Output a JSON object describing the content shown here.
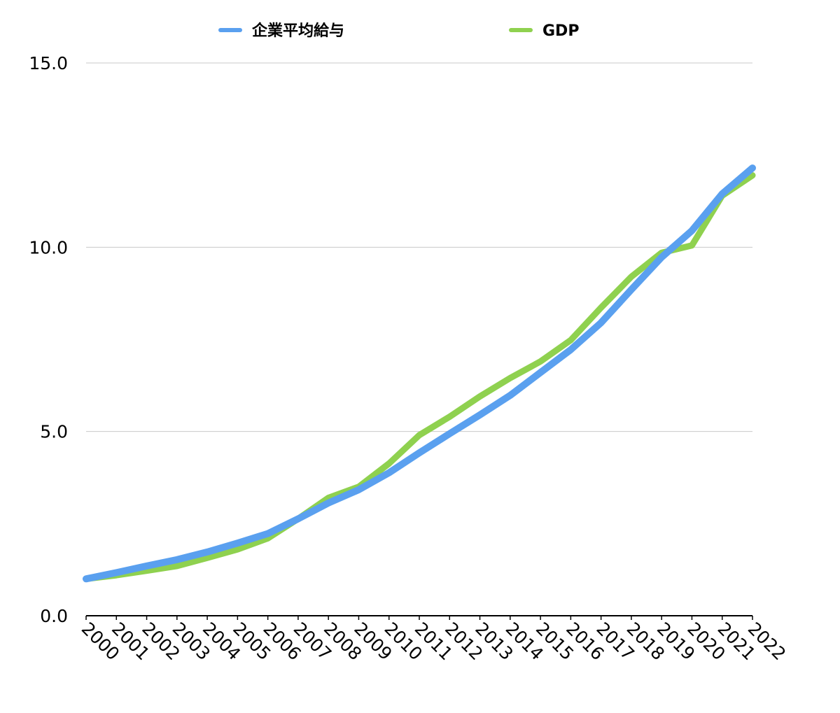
{
  "chart_data": {
    "type": "line",
    "title": "",
    "xlabel": "",
    "ylabel": "",
    "categories": [
      "2000",
      "2001",
      "2002",
      "2003",
      "2004",
      "2005",
      "2006",
      "2007",
      "2008",
      "2009",
      "2010",
      "2011",
      "2012",
      "2013",
      "2014",
      "2015",
      "2016",
      "2017",
      "2018",
      "2019",
      "2020",
      "2021",
      "2022"
    ],
    "ylim": [
      0,
      15
    ],
    "yticks": [
      "0.0",
      "5.0",
      "10.0",
      "15.0"
    ],
    "grid": true,
    "legend_position": "top",
    "series": [
      {
        "name": "GDP",
        "color": "#8fd14f",
        "values": [
          1.0,
          1.1,
          1.22,
          1.35,
          1.57,
          1.8,
          2.1,
          2.63,
          3.2,
          3.5,
          4.13,
          4.9,
          5.4,
          5.95,
          6.45,
          6.9,
          7.48,
          8.36,
          9.2,
          9.85,
          10.05,
          11.4,
          11.95
        ]
      },
      {
        "name": "企業平均給与",
        "color": "#5aa0ef",
        "values": [
          1.0,
          1.17,
          1.35,
          1.52,
          1.73,
          1.97,
          2.23,
          2.63,
          3.06,
          3.42,
          3.88,
          4.42,
          4.94,
          5.45,
          5.98,
          6.6,
          7.22,
          7.95,
          8.85,
          9.73,
          10.45,
          11.45,
          12.15
        ]
      }
    ],
    "legend": [
      {
        "name": "企業平均給与",
        "color": "#5aa0ef"
      },
      {
        "name": "GDP",
        "color": "#8fd14f"
      }
    ]
  }
}
